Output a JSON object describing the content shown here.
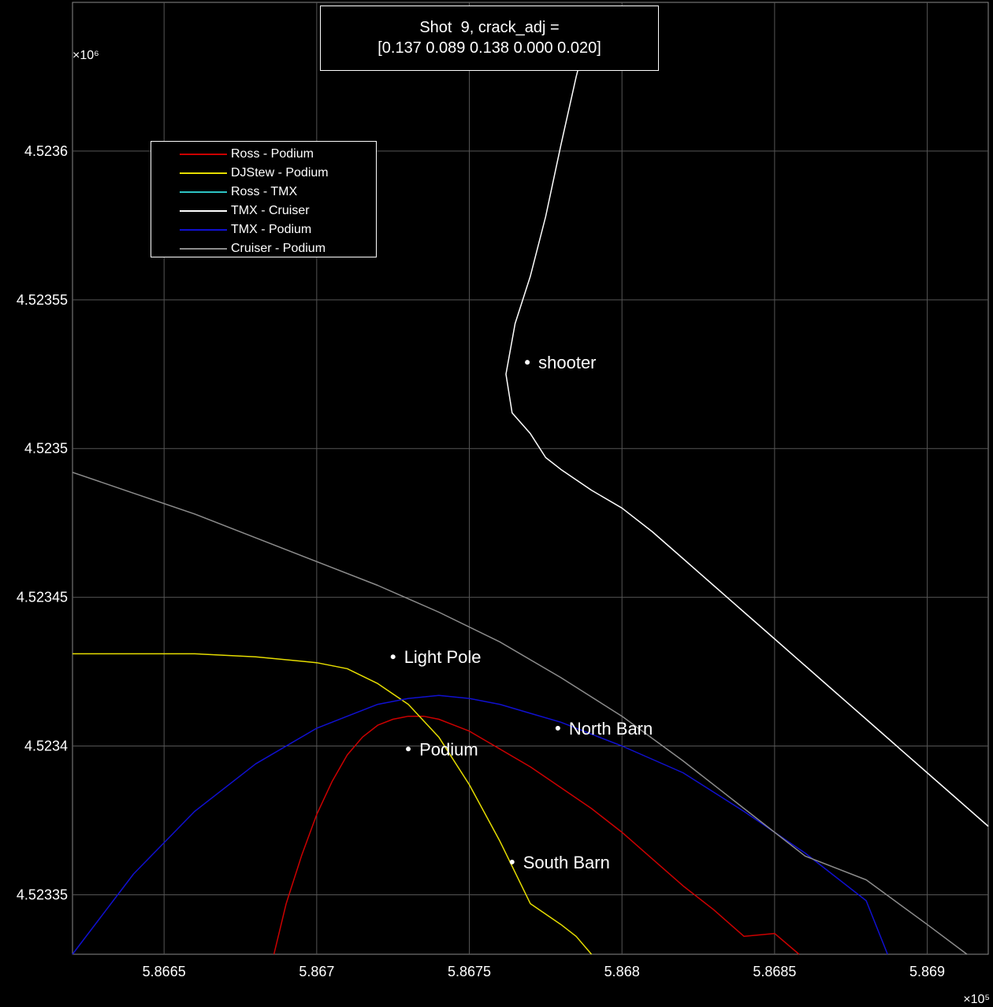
{
  "chart_data": {
    "type": "line",
    "title": [
      "Shot  9, crack_adj =",
      "[0.137 0.089 0.138 0.000 0.020]"
    ],
    "xlabel": "",
    "ylabel": "",
    "x_exponent": "×10⁵",
    "y_exponent": "×10⁶",
    "xlim": [
      5.8662,
      5.8692
    ],
    "ylim": [
      4.52333,
      4.52365
    ],
    "xticks": [
      5.8665,
      5.867,
      5.8675,
      5.868,
      5.8685,
      5.869
    ],
    "xtick_labels": [
      "5.8665",
      "5.867",
      "5.8675",
      "5.868",
      "5.8685",
      "5.869"
    ],
    "yticks": [
      4.52335,
      4.5234,
      4.52345,
      4.5235,
      4.52355,
      4.5236
    ],
    "ytick_labels": [
      "4.52335",
      "4.5234",
      "4.52345",
      "4.5235",
      "4.52355",
      "4.5236"
    ],
    "grid": true,
    "legend_position": "top-left",
    "background": "#000000",
    "series": [
      {
        "name": "Ross - Podium",
        "color": "#cc0000",
        "x": [
          5.86686,
          5.8669,
          5.86695,
          5.867,
          5.86705,
          5.8671,
          5.86715,
          5.8672,
          5.86725,
          5.8673,
          5.86735,
          5.8674,
          5.86745,
          5.8675,
          5.86755,
          5.8676,
          5.8677,
          5.8678,
          5.8679,
          5.868,
          5.8681,
          5.8682,
          5.8683,
          5.8684,
          5.8685,
          5.86858
        ],
        "y": [
          4.52333,
          4.523347,
          4.523363,
          4.523377,
          4.523388,
          4.523397,
          4.523403,
          4.523407,
          4.523409,
          4.52341,
          4.52341,
          4.523409,
          4.523407,
          4.523405,
          4.523402,
          4.523399,
          4.523393,
          4.523386,
          4.523379,
          4.523371,
          4.523362,
          4.523353,
          4.523345,
          4.523336,
          4.523337,
          4.52333
        ]
      },
      {
        "name": "DJStew - Podium",
        "color": "#e6dd00",
        "x": [
          5.8662,
          5.8664,
          5.8666,
          5.8668,
          5.867,
          5.8671,
          5.8672,
          5.8673,
          5.8674,
          5.8675,
          5.8676,
          5.8677,
          5.8678,
          5.86785,
          5.8679
        ],
        "y": [
          4.523431,
          4.523431,
          4.523431,
          4.52343,
          4.523428,
          4.523426,
          4.523421,
          4.523414,
          4.523403,
          4.523387,
          4.523368,
          4.523347,
          4.52334,
          4.523336,
          4.52333
        ]
      },
      {
        "name": "Ross - TMX",
        "color": "#2ec4c4",
        "x": [],
        "y": []
      },
      {
        "name": "TMX - Cruiser",
        "color": "#ffffff",
        "x": [
          5.8679,
          5.86785,
          5.8678,
          5.86775,
          5.8677,
          5.86765,
          5.86762,
          5.86764,
          5.8677,
          5.86775,
          5.8678,
          5.8679,
          5.868,
          5.8681,
          5.8682,
          5.8683,
          5.8684,
          5.8685,
          5.8686,
          5.8687,
          5.8688,
          5.8689,
          5.869,
          5.8691,
          5.8692
        ],
        "y": [
          4.523645,
          4.523625,
          4.523602,
          4.523578,
          4.523558,
          4.523542,
          4.523525,
          4.523512,
          4.523505,
          4.523497,
          4.523493,
          4.523486,
          4.52348,
          4.523472,
          4.523463,
          4.523454,
          4.523445,
          4.523436,
          4.523427,
          4.523418,
          4.523409,
          4.5234,
          4.523391,
          4.523382,
          4.523373
        ]
      },
      {
        "name": "TMX - Podium",
        "color": "#1010d0",
        "x": [
          5.8662,
          5.8664,
          5.8666,
          5.8668,
          5.867,
          5.8671,
          5.8672,
          5.8673,
          5.8674,
          5.8675,
          5.8676,
          5.8677,
          5.8678,
          5.8679,
          5.868,
          5.8682,
          5.8684,
          5.8686,
          5.8688,
          5.86887
        ],
        "y": [
          4.52333,
          4.523357,
          4.523378,
          4.523394,
          4.523406,
          4.52341,
          4.523414,
          4.523416,
          4.523417,
          4.523416,
          4.523414,
          4.523411,
          4.523408,
          4.523404,
          4.5234,
          4.523391,
          4.523378,
          4.523364,
          4.523348,
          4.52333
        ]
      },
      {
        "name": "Cruiser - Podium",
        "color": "#8c8c8c",
        "x": [
          5.8662,
          5.8664,
          5.8666,
          5.8668,
          5.867,
          5.8672,
          5.8674,
          5.8676,
          5.8678,
          5.868,
          5.8682,
          5.8684,
          5.8686,
          5.8688,
          5.869,
          5.86913
        ],
        "y": [
          4.523492,
          4.523485,
          4.523478,
          4.52347,
          4.523462,
          4.523454,
          4.523445,
          4.523435,
          4.523423,
          4.52341,
          4.523395,
          4.523379,
          4.523363,
          4.523355,
          4.52334,
          4.52333
        ]
      }
    ],
    "markers": [
      {
        "label": "shooter",
        "x": 5.86769,
        "y": 4.523529
      },
      {
        "label": "Light Pole",
        "x": 5.86725,
        "y": 4.52343
      },
      {
        "label": "North Barn",
        "x": 5.86779,
        "y": 4.523406
      },
      {
        "label": "Podium",
        "x": 5.8673,
        "y": 4.523399
      },
      {
        "label": "South Barn",
        "x": 5.86764,
        "y": 4.523361
      }
    ]
  }
}
